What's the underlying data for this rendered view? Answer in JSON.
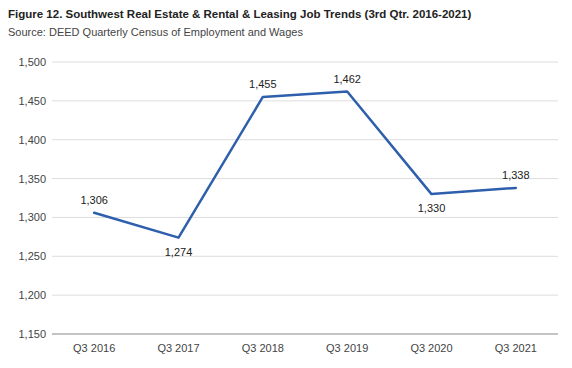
{
  "chart_data": {
    "type": "line",
    "title": "Figure 12. Southwest Real Estate & Rental & Leasing Job Trends (3rd Qtr. 2016-2021)",
    "subtitle": "Source: DEED Quarterly Census of Employment and Wages",
    "categories": [
      "Q3 2016",
      "Q3 2017",
      "Q3 2018",
      "Q3 2019",
      "Q3 2020",
      "Q3 2021"
    ],
    "values": [
      1306,
      1274,
      1455,
      1462,
      1330,
      1338
    ],
    "value_labels": [
      "1,306",
      "1,274",
      "1,455",
      "1,462",
      "1,330",
      "1,338"
    ],
    "color": "#2E5FAC",
    "ylim": [
      1150,
      1500
    ],
    "yticks": [
      {
        "value": 1150,
        "label": "1,150"
      },
      {
        "value": 1200,
        "label": "1,200"
      },
      {
        "value": 1250,
        "label": "1,250"
      },
      {
        "value": 1300,
        "label": "1,300"
      },
      {
        "value": 1350,
        "label": "1,350"
      },
      {
        "value": 1400,
        "label": "1,400"
      },
      {
        "value": 1450,
        "label": "1,450"
      },
      {
        "value": 1500,
        "label": "1,500"
      }
    ],
    "grid": true,
    "data_labels": true
  }
}
